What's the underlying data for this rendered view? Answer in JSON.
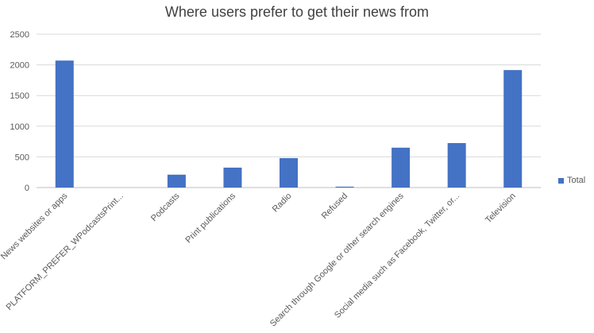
{
  "chart_data": {
    "type": "bar",
    "title": "Where users prefer to get their news from",
    "xlabel": "",
    "ylabel": "",
    "categories": [
      "News websites or apps",
      "PLATFORM_PREFER_WPodcastsPrint...",
      "Podcasts",
      "Print publications",
      "Radio",
      "Refused",
      "Search through Google or other search engines",
      "Social media such as Facebook, Twitter, or...",
      "Television"
    ],
    "series": [
      {
        "name": "Total",
        "values": [
          2070,
          0,
          210,
          325,
          480,
          15,
          650,
          725,
          1915
        ]
      }
    ],
    "ylim": [
      0,
      2500
    ],
    "yticks": [
      "0",
      "500",
      "1000",
      "1500",
      "2000",
      "2500"
    ],
    "grid": true,
    "legend_position": "right",
    "colors": {
      "bar": "#4472C4",
      "grid": "#D9D9D9",
      "axis": "#BFBFBF"
    }
  }
}
